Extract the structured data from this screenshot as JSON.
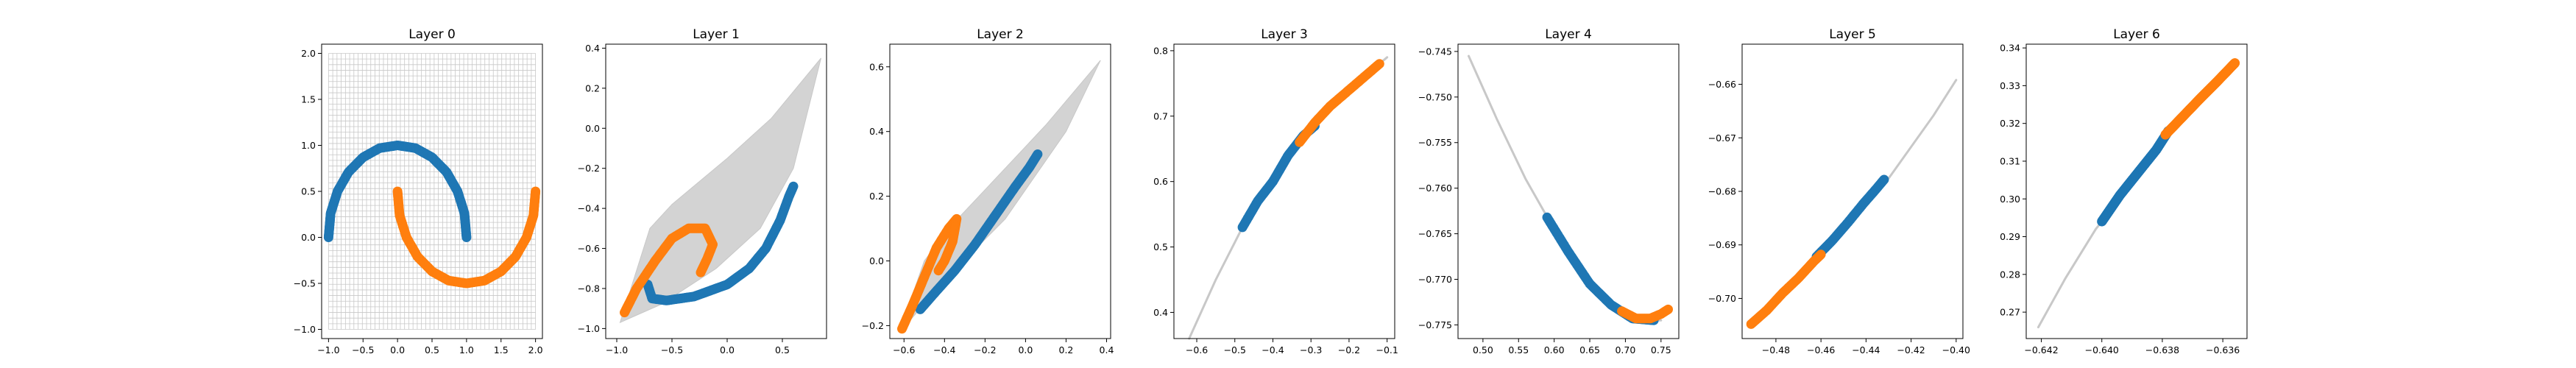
{
  "chart_data": [
    {
      "type": "scatter",
      "title": "Layer 0",
      "xlim": [
        -1.1,
        2.1
      ],
      "ylim": [
        -1.1,
        2.1
      ],
      "xticks": [
        -1.0,
        -0.5,
        0.0,
        0.5,
        1.0,
        1.5,
        2.0
      ],
      "xtick_labels": [
        "−1.0",
        "−0.5",
        "0.0",
        "0.5",
        "1.0",
        "1.5",
        "2.0"
      ],
      "yticks": [
        -1.0,
        -0.5,
        0.0,
        0.5,
        1.0,
        1.5,
        2.0
      ],
      "ytick_labels": [
        "−1.0",
        "−0.5",
        "0.0",
        "0.5",
        "1.0",
        "1.5",
        "2.0"
      ],
      "mesh": {
        "style": "grid",
        "x_range": [
          -1.0,
          2.0
        ],
        "y_range": [
          -1.0,
          2.0
        ],
        "lines": 50
      },
      "series": [
        {
          "color": "#1f77b4",
          "points": [
            [
              -1.0,
              0.0
            ],
            [
              -0.97,
              0.26
            ],
            [
              -0.87,
              0.5
            ],
            [
              -0.71,
              0.71
            ],
            [
              -0.5,
              0.87
            ],
            [
              -0.26,
              0.97
            ],
            [
              0.0,
              1.0
            ],
            [
              0.26,
              0.97
            ],
            [
              0.5,
              0.87
            ],
            [
              0.71,
              0.71
            ],
            [
              0.87,
              0.5
            ],
            [
              0.97,
              0.26
            ],
            [
              1.0,
              0.0
            ]
          ]
        },
        {
          "color": "#ff7f0e",
          "points": [
            [
              0.0,
              0.5
            ],
            [
              0.03,
              0.24
            ],
            [
              0.13,
              0.0
            ],
            [
              0.29,
              -0.21
            ],
            [
              0.5,
              -0.37
            ],
            [
              0.74,
              -0.47
            ],
            [
              1.0,
              -0.5
            ],
            [
              1.26,
              -0.47
            ],
            [
              1.5,
              -0.37
            ],
            [
              1.71,
              -0.21
            ],
            [
              1.87,
              0.0
            ],
            [
              1.97,
              0.24
            ],
            [
              2.0,
              0.5
            ]
          ]
        }
      ]
    },
    {
      "type": "scatter",
      "title": "Layer 1",
      "xlim": [
        -1.1,
        0.9
      ],
      "ylim": [
        -1.05,
        0.42
      ],
      "xticks": [
        -1.0,
        -0.5,
        0.0,
        0.5
      ],
      "xtick_labels": [
        "−1.0",
        "−0.5",
        "0.0",
        "0.5"
      ],
      "yticks": [
        -1.0,
        -0.8,
        -0.6,
        -0.4,
        -0.2,
        0.0,
        0.2,
        0.4
      ],
      "ytick_labels": [
        "−1.0",
        "−0.8",
        "−0.6",
        "−0.4",
        "−0.2",
        "0.0",
        "0.2",
        "0.4"
      ],
      "mesh": {
        "style": "fill",
        "polygon": [
          [
            -0.97,
            -0.97
          ],
          [
            -0.6,
            -0.88
          ],
          [
            -0.1,
            -0.7
          ],
          [
            0.3,
            -0.5
          ],
          [
            0.6,
            -0.2
          ],
          [
            0.85,
            0.35
          ],
          [
            0.4,
            0.05
          ],
          [
            0.0,
            -0.15
          ],
          [
            -0.5,
            -0.38
          ],
          [
            -0.7,
            -0.5
          ],
          [
            -0.97,
            -0.97
          ]
        ]
      },
      "series": [
        {
          "color": "#1f77b4",
          "points": [
            [
              -0.72,
              -0.78
            ],
            [
              -0.68,
              -0.85
            ],
            [
              -0.55,
              -0.86
            ],
            [
              -0.3,
              -0.84
            ],
            [
              0.0,
              -0.78
            ],
            [
              0.2,
              -0.7
            ],
            [
              0.35,
              -0.6
            ],
            [
              0.48,
              -0.46
            ],
            [
              0.56,
              -0.34
            ],
            [
              0.6,
              -0.29
            ]
          ]
        },
        {
          "color": "#ff7f0e",
          "points": [
            [
              -0.93,
              -0.92
            ],
            [
              -0.82,
              -0.8
            ],
            [
              -0.65,
              -0.66
            ],
            [
              -0.5,
              -0.55
            ],
            [
              -0.35,
              -0.5
            ],
            [
              -0.2,
              -0.5
            ],
            [
              -0.13,
              -0.58
            ],
            [
              -0.18,
              -0.65
            ],
            [
              -0.24,
              -0.72
            ]
          ]
        }
      ]
    },
    {
      "type": "scatter",
      "title": "Layer 2",
      "xlim": [
        -0.67,
        0.42
      ],
      "ylim": [
        -0.24,
        0.67
      ],
      "xticks": [
        -0.6,
        -0.4,
        -0.2,
        0.0,
        0.2,
        0.4
      ],
      "xtick_labels": [
        "−0.6",
        "−0.4",
        "−0.2",
        "0.0",
        "0.2",
        "0.4"
      ],
      "yticks": [
        -0.2,
        0.0,
        0.2,
        0.4,
        0.6
      ],
      "ytick_labels": [
        "−0.2",
        "0.0",
        "0.2",
        "0.4",
        "0.6"
      ],
      "mesh": {
        "style": "fill",
        "polygon": [
          [
            -0.62,
            -0.22
          ],
          [
            -0.4,
            -0.06
          ],
          [
            -0.1,
            0.13
          ],
          [
            0.2,
            0.4
          ],
          [
            0.37,
            0.62
          ],
          [
            0.1,
            0.42
          ],
          [
            -0.2,
            0.22
          ],
          [
            -0.38,
            0.1
          ],
          [
            -0.5,
            0.0
          ],
          [
            -0.6,
            -0.18
          ],
          [
            -0.62,
            -0.22
          ]
        ]
      },
      "series": [
        {
          "color": "#1f77b4",
          "points": [
            [
              -0.52,
              -0.15
            ],
            [
              -0.45,
              -0.1
            ],
            [
              -0.35,
              -0.03
            ],
            [
              -0.25,
              0.05
            ],
            [
              -0.15,
              0.14
            ],
            [
              -0.05,
              0.23
            ],
            [
              0.02,
              0.29
            ],
            [
              0.06,
              0.33
            ]
          ]
        },
        {
          "color": "#ff7f0e",
          "points": [
            [
              -0.61,
              -0.21
            ],
            [
              -0.56,
              -0.14
            ],
            [
              -0.5,
              -0.05
            ],
            [
              -0.44,
              0.04
            ],
            [
              -0.38,
              0.1
            ],
            [
              -0.34,
              0.13
            ],
            [
              -0.36,
              0.06
            ],
            [
              -0.4,
              0.0
            ],
            [
              -0.43,
              -0.03
            ]
          ]
        }
      ]
    },
    {
      "type": "scatter",
      "title": "Layer 3",
      "xlim": [
        -0.66,
        -0.08
      ],
      "ylim": [
        0.36,
        0.81
      ],
      "xticks": [
        -0.6,
        -0.5,
        -0.4,
        -0.3,
        -0.2,
        -0.1
      ],
      "xtick_labels": [
        "−0.6",
        "−0.5",
        "−0.4",
        "−0.3",
        "−0.2",
        "−0.1"
      ],
      "yticks": [
        0.4,
        0.5,
        0.6,
        0.7,
        0.8
      ],
      "ytick_labels": [
        "0.4",
        "0.5",
        "0.6",
        "0.7",
        "0.8"
      ],
      "mesh": {
        "style": "curve",
        "points": [
          [
            -0.62,
            0.36
          ],
          [
            -0.55,
            0.45
          ],
          [
            -0.48,
            0.53
          ],
          [
            -0.4,
            0.6
          ],
          [
            -0.32,
            0.67
          ],
          [
            -0.24,
            0.72
          ],
          [
            -0.16,
            0.76
          ],
          [
            -0.1,
            0.79
          ]
        ]
      },
      "series": [
        {
          "color": "#1f77b4",
          "points": [
            [
              -0.48,
              0.53
            ],
            [
              -0.44,
              0.57
            ],
            [
              -0.4,
              0.6
            ],
            [
              -0.36,
              0.64
            ],
            [
              -0.32,
              0.67
            ],
            [
              -0.29,
              0.685
            ]
          ]
        },
        {
          "color": "#ff7f0e",
          "points": [
            [
              -0.33,
              0.66
            ],
            [
              -0.29,
              0.69
            ],
            [
              -0.25,
              0.715
            ],
            [
              -0.2,
              0.74
            ],
            [
              -0.16,
              0.76
            ],
            [
              -0.12,
              0.78
            ]
          ]
        }
      ]
    },
    {
      "type": "scatter",
      "title": "Layer 4",
      "xlim": [
        0.465,
        0.775
      ],
      "ylim": [
        -0.7765,
        -0.7442
      ],
      "xticks": [
        0.5,
        0.55,
        0.6,
        0.65,
        0.7,
        0.75
      ],
      "xtick_labels": [
        "0.50",
        "0.55",
        "0.60",
        "0.65",
        "0.70",
        "0.75"
      ],
      "yticks": [
        -0.775,
        -0.77,
        -0.765,
        -0.76,
        -0.755,
        -0.75,
        -0.745
      ],
      "ytick_labels": [
        "−0.775",
        "−0.770",
        "−0.765",
        "−0.760",
        "−0.755",
        "−0.750",
        "−0.745"
      ],
      "mesh": {
        "style": "curve",
        "points": [
          [
            0.48,
            -0.7455
          ],
          [
            0.52,
            -0.7525
          ],
          [
            0.56,
            -0.759
          ],
          [
            0.6,
            -0.7645
          ],
          [
            0.64,
            -0.769
          ],
          [
            0.68,
            -0.7725
          ],
          [
            0.72,
            -0.7745
          ],
          [
            0.75,
            -0.7745
          ]
        ]
      },
      "series": [
        {
          "color": "#1f77b4",
          "points": [
            [
              0.59,
              -0.7632
            ],
            [
              0.62,
              -0.767
            ],
            [
              0.65,
              -0.7705
            ],
            [
              0.68,
              -0.7728
            ],
            [
              0.71,
              -0.7743
            ],
            [
              0.74,
              -0.7745
            ]
          ]
        },
        {
          "color": "#ff7f0e",
          "points": [
            [
              0.695,
              -0.7735
            ],
            [
              0.715,
              -0.7743
            ],
            [
              0.735,
              -0.7743
            ],
            [
              0.75,
              -0.7738
            ],
            [
              0.76,
              -0.7733
            ]
          ]
        }
      ]
    },
    {
      "type": "scatter",
      "title": "Layer 5",
      "xlim": [
        -0.495,
        -0.397
      ],
      "ylim": [
        -0.7075,
        -0.6525
      ],
      "xticks": [
        -0.48,
        -0.46,
        -0.44,
        -0.42,
        -0.4
      ],
      "xtick_labels": [
        "−0.48",
        "−0.46",
        "−0.44",
        "−0.42",
        "−0.40"
      ],
      "yticks": [
        -0.7,
        -0.69,
        -0.68,
        -0.67,
        -0.66
      ],
      "ytick_labels": [
        "−0.70",
        "−0.69",
        "−0.68",
        "−0.67",
        "−0.66"
      ],
      "mesh": {
        "style": "curve",
        "points": [
          [
            -0.49,
            -0.7048
          ],
          [
            -0.47,
            -0.6968
          ],
          [
            -0.45,
            -0.6876
          ],
          [
            -0.43,
            -0.6776
          ],
          [
            -0.41,
            -0.6658
          ],
          [
            -0.4,
            -0.6592
          ]
        ]
      },
      "series": [
        {
          "color": "#1f77b4",
          "points": [
            [
              -0.462,
              -0.6922
            ],
            [
              -0.455,
              -0.6892
            ],
            [
              -0.448,
              -0.6858
            ],
            [
              -0.441,
              -0.6822
            ],
            [
              -0.436,
              -0.6798
            ],
            [
              -0.432,
              -0.6778
            ]
          ]
        },
        {
          "color": "#ff7f0e",
          "points": [
            [
              -0.491,
              -0.7048
            ],
            [
              -0.484,
              -0.7022
            ],
            [
              -0.477,
              -0.699
            ],
            [
              -0.47,
              -0.6962
            ],
            [
              -0.463,
              -0.693
            ],
            [
              -0.46,
              -0.6918
            ]
          ]
        }
      ]
    },
    {
      "type": "scatter",
      "title": "Layer 6",
      "xlim": [
        -0.6425,
        -0.6352
      ],
      "ylim": [
        0.263,
        0.341
      ],
      "xticks": [
        -0.642,
        -0.64,
        -0.638,
        -0.636
      ],
      "xtick_labels": [
        "−0.642",
        "−0.640",
        "−0.638",
        "−0.636"
      ],
      "yticks": [
        0.27,
        0.28,
        0.29,
        0.3,
        0.31,
        0.32,
        0.33,
        0.34
      ],
      "ytick_labels": [
        "0.27",
        "0.28",
        "0.29",
        "0.30",
        "0.31",
        "0.32",
        "0.33",
        "0.34"
      ],
      "mesh": {
        "style": "curve",
        "points": [
          [
            -0.6421,
            0.266
          ],
          [
            -0.6412,
            0.279
          ],
          [
            -0.6402,
            0.292
          ],
          [
            -0.639,
            0.304
          ],
          [
            -0.638,
            0.315
          ],
          [
            -0.637,
            0.324
          ],
          [
            -0.636,
            0.333
          ],
          [
            -0.6356,
            0.336
          ]
        ]
      },
      "series": [
        {
          "color": "#1f77b4",
          "points": [
            [
              -0.64,
              0.294
            ],
            [
              -0.6394,
              0.301
            ],
            [
              -0.6388,
              0.307
            ],
            [
              -0.6382,
              0.313
            ],
            [
              -0.6378,
              0.318
            ]
          ]
        },
        {
          "color": "#ff7f0e",
          "points": [
            [
              -0.6379,
              0.317
            ],
            [
              -0.6373,
              0.322
            ],
            [
              -0.6367,
              0.327
            ],
            [
              -0.6362,
              0.331
            ],
            [
              -0.6356,
              0.336
            ]
          ]
        }
      ]
    }
  ]
}
